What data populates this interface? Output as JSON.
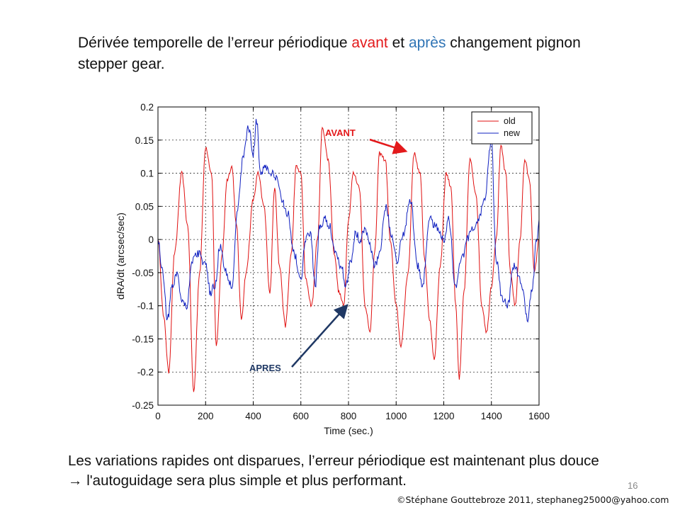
{
  "slide": {
    "title_part1": "Dérivée temporelle de l’erreur périodique ",
    "title_avant": "avant",
    "title_part2": " et ",
    "title_apres": "après",
    "title_part3": " changement pignon stepper gear.",
    "caption_line1": "Les variations rapides ont disparues, l’erreur périodique est maintenant plus douce",
    "caption_arrow": "→",
    "caption_line2": " l'autoguidage sera plus simple et plus performant.",
    "page_number": "16",
    "copyright": "©Stéphane Gouttebroze 2011, stephaneg25000@yahoo.com",
    "colors": {
      "avant": "#e3191b",
      "apres": "#2f74b5"
    }
  },
  "chart_data": {
    "type": "line",
    "title": "",
    "xlabel": "Time (sec.)",
    "ylabel": "dRA/dt (arcsec/sec)",
    "xlim": [
      0,
      1600
    ],
    "ylim": [
      -0.25,
      0.2
    ],
    "xticks": [
      0,
      200,
      400,
      600,
      800,
      1000,
      1200,
      1400,
      1600
    ],
    "yticks": [
      0.2,
      0.15,
      0.1,
      0.05,
      0,
      -0.05,
      -0.1,
      -0.15,
      -0.2,
      -0.25
    ],
    "ytick_labels": [
      "0.2",
      "0.15",
      "0.1",
      "0.05",
      "0",
      "-0.05",
      "-0.1",
      "-0.15",
      "-0.2",
      "-0.25"
    ],
    "grid": true,
    "legend_position": "top-right",
    "series": [
      {
        "name": "old",
        "color": "#e01010",
        "x": [
          0,
          25,
          45,
          70,
          100,
          125,
          150,
          175,
          200,
          225,
          245,
          270,
          290,
          310,
          330,
          350,
          370,
          400,
          420,
          445,
          470,
          490,
          510,
          535,
          560,
          580,
          600,
          620,
          645,
          670,
          690,
          715,
          740,
          760,
          780,
          800,
          820,
          845,
          870,
          890,
          910,
          930,
          955,
          975,
          1000,
          1020,
          1050,
          1075,
          1100,
          1120,
          1140,
          1160,
          1185,
          1210,
          1230,
          1250,
          1265,
          1285,
          1310,
          1335,
          1360,
          1380,
          1400,
          1420,
          1440,
          1460,
          1480,
          1500,
          1520,
          1540,
          1560,
          1580,
          1600
        ],
        "values": [
          0.0,
          -0.12,
          -0.2,
          -0.02,
          0.1,
          0.02,
          -0.23,
          -0.05,
          0.14,
          0.1,
          -0.16,
          -0.02,
          0.09,
          0.11,
          0.02,
          -0.12,
          -0.05,
          0.06,
          0.1,
          0.05,
          -0.08,
          0.08,
          -0.04,
          -0.13,
          -0.02,
          0.11,
          0.1,
          -0.06,
          -0.1,
          0.0,
          0.17,
          0.12,
          -0.02,
          -0.08,
          -0.1,
          0.03,
          0.1,
          0.08,
          -0.1,
          -0.14,
          -0.02,
          0.13,
          0.12,
          0.0,
          -0.1,
          -0.16,
          -0.05,
          0.13,
          0.1,
          -0.03,
          -0.12,
          -0.18,
          -0.04,
          0.1,
          0.08,
          -0.1,
          -0.21,
          -0.08,
          0.12,
          0.07,
          -0.1,
          -0.14,
          -0.07,
          0.0,
          0.14,
          0.1,
          -0.05,
          -0.1,
          0.0,
          0.12,
          0.09,
          -0.05,
          0.0
        ]
      },
      {
        "name": "new",
        "color": "#1020c0",
        "x": [
          0,
          20,
          40,
          60,
          80,
          100,
          120,
          145,
          170,
          200,
          220,
          240,
          260,
          285,
          310,
          335,
          360,
          380,
          400,
          415,
          430,
          450,
          475,
          500,
          520,
          545,
          570,
          600,
          620,
          640,
          660,
          680,
          700,
          720,
          745,
          770,
          790,
          810,
          830,
          850,
          870,
          890,
          910,
          930,
          955,
          980,
          1005,
          1030,
          1060,
          1090,
          1110,
          1140,
          1170,
          1200,
          1220,
          1250,
          1275,
          1300,
          1325,
          1350,
          1370,
          1400,
          1420,
          1445,
          1470,
          1490,
          1510,
          1530,
          1550,
          1570,
          1590,
          1600
        ],
        "values": [
          0.0,
          -0.05,
          -0.12,
          -0.07,
          -0.05,
          -0.09,
          -0.1,
          -0.03,
          -0.02,
          -0.04,
          -0.08,
          -0.07,
          -0.01,
          -0.05,
          -0.07,
          0.05,
          0.13,
          0.17,
          0.13,
          0.18,
          0.1,
          0.11,
          0.1,
          0.09,
          0.06,
          0.04,
          -0.02,
          -0.06,
          0.0,
          0.01,
          -0.07,
          0.02,
          0.03,
          0.02,
          -0.02,
          -0.04,
          -0.07,
          -0.03,
          0.01,
          0.0,
          0.02,
          -0.01,
          -0.04,
          -0.02,
          0.05,
          0.01,
          -0.03,
          0.01,
          0.06,
          -0.04,
          -0.07,
          0.03,
          0.02,
          0.0,
          0.03,
          -0.07,
          -0.03,
          0.0,
          0.02,
          0.03,
          0.06,
          0.15,
          -0.03,
          -0.09,
          -0.1,
          -0.04,
          -0.05,
          -0.07,
          -0.12,
          -0.08,
          0.0,
          0.03
        ]
      }
    ],
    "annotations": [
      {
        "text": "AVANT",
        "target": [
          1050,
          0.13
        ],
        "color": "#e3191b"
      },
      {
        "text": "APRES",
        "target": [
          800,
          -0.095
        ],
        "color": "#1f3864"
      }
    ]
  }
}
